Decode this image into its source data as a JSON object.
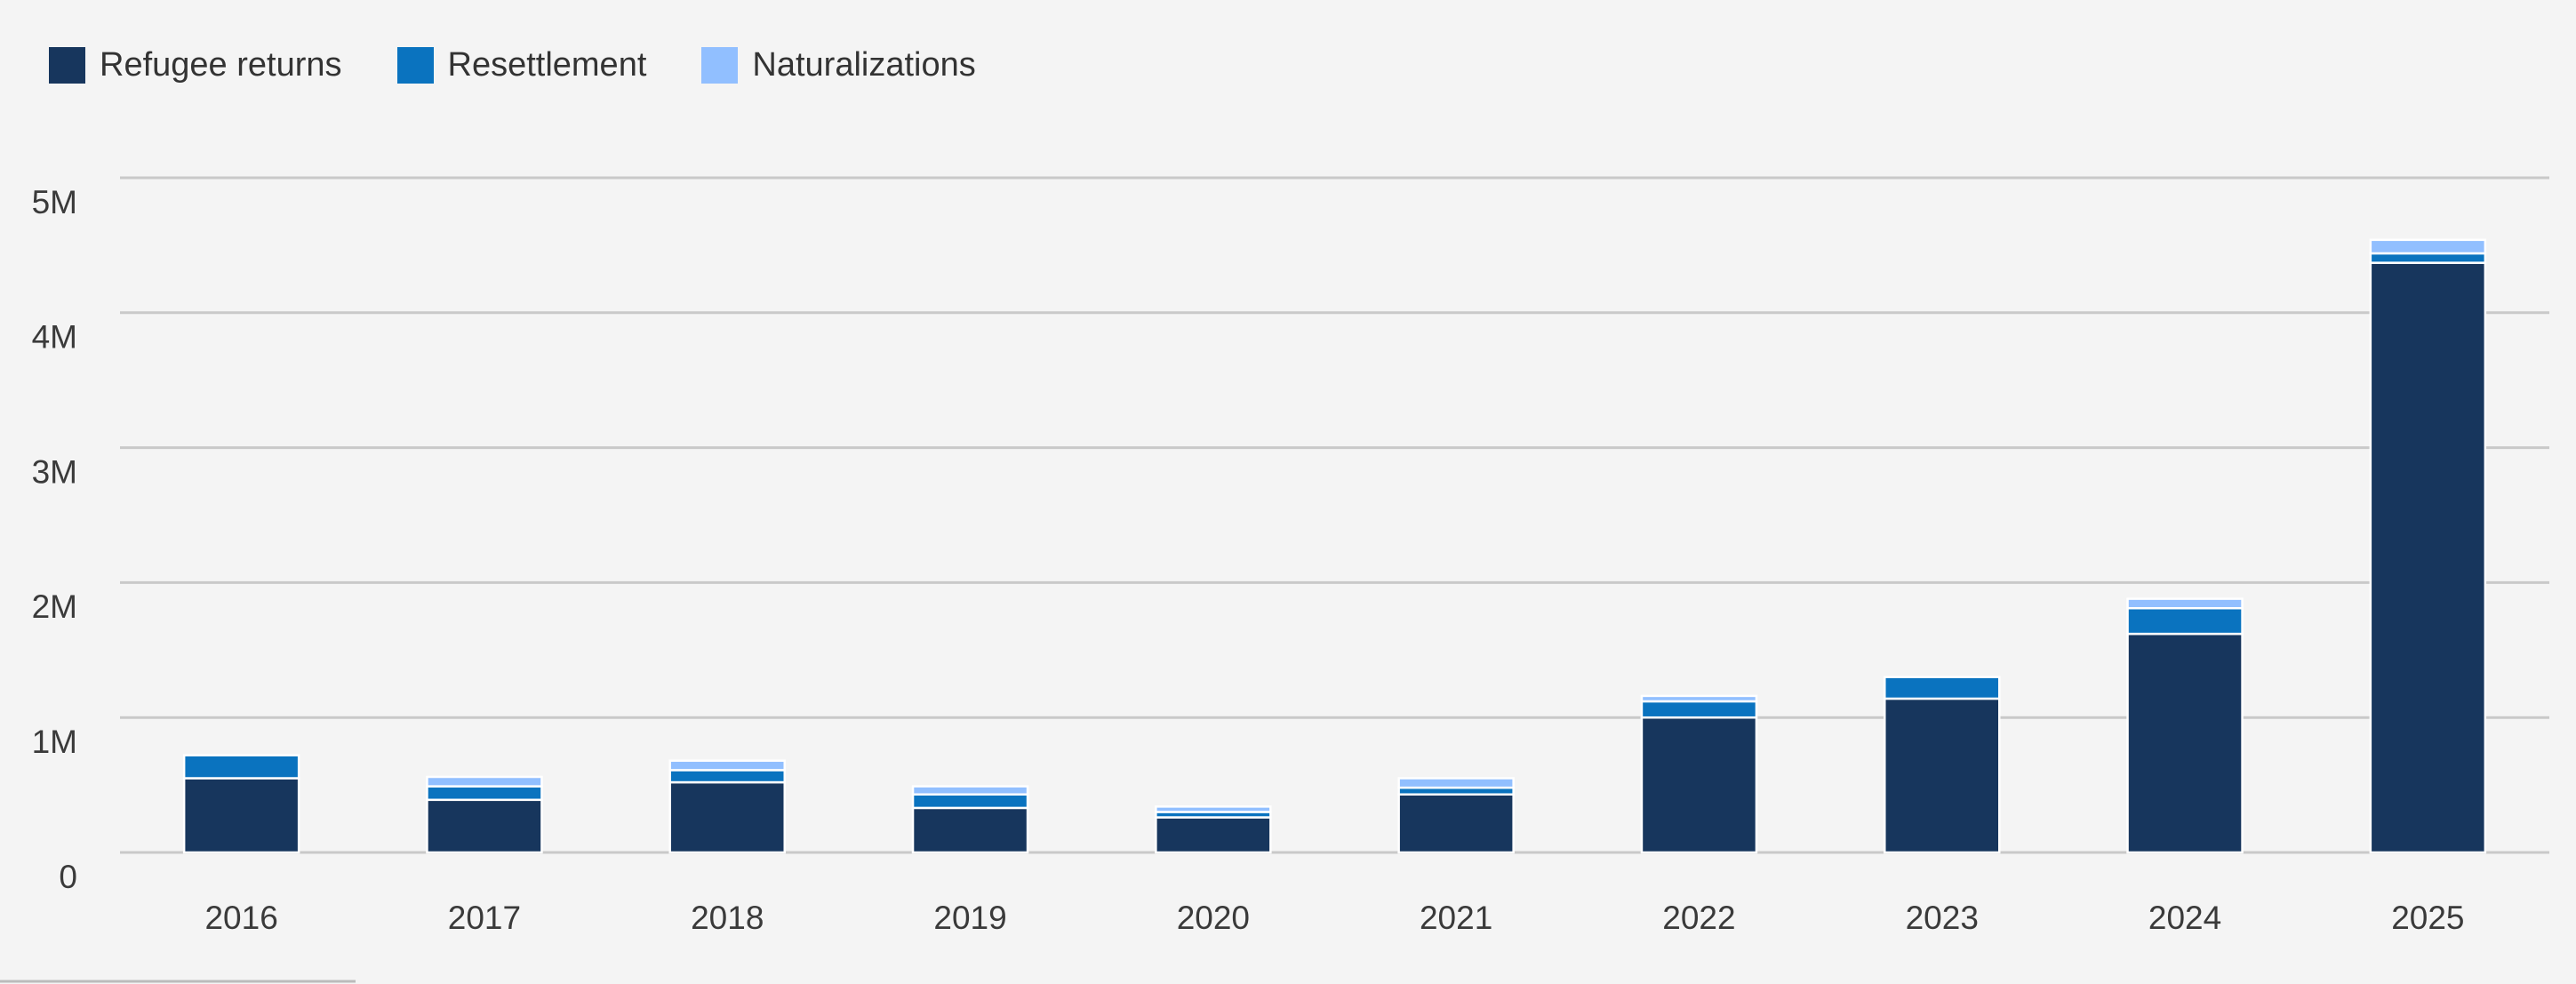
{
  "chart_data": {
    "type": "stacked-bar",
    "categories": [
      "2016",
      "2017",
      "2018",
      "2019",
      "2020",
      "2021",
      "2022",
      "2023",
      "2024",
      "2025"
    ],
    "series": [
      {
        "name": "Refugee returns",
        "color": "#17365d",
        "values": [
          550000,
          390000,
          520000,
          330000,
          260000,
          430000,
          1000000,
          1140000,
          1620000,
          4370000
        ]
      },
      {
        "name": "Resettlement",
        "color": "#0a73bf",
        "values": [
          170000,
          100000,
          90000,
          100000,
          40000,
          50000,
          120000,
          160000,
          190000,
          70000
        ]
      },
      {
        "name": "Naturalizations",
        "color": "#91bfff",
        "values": [
          0,
          70000,
          70000,
          60000,
          40000,
          70000,
          40000,
          0,
          70000,
          100000
        ]
      }
    ],
    "ylim": [
      0,
      5000000
    ],
    "yticks": [
      0,
      {
        "value": 1000000,
        "label": "1M"
      },
      {
        "value": 2000000,
        "label": "2M"
      },
      {
        "value": 3000000,
        "label": "3M"
      },
      {
        "value": 4000000,
        "label": "4M"
      },
      {
        "value": 5000000,
        "label": "5M"
      }
    ],
    "grid": true
  }
}
